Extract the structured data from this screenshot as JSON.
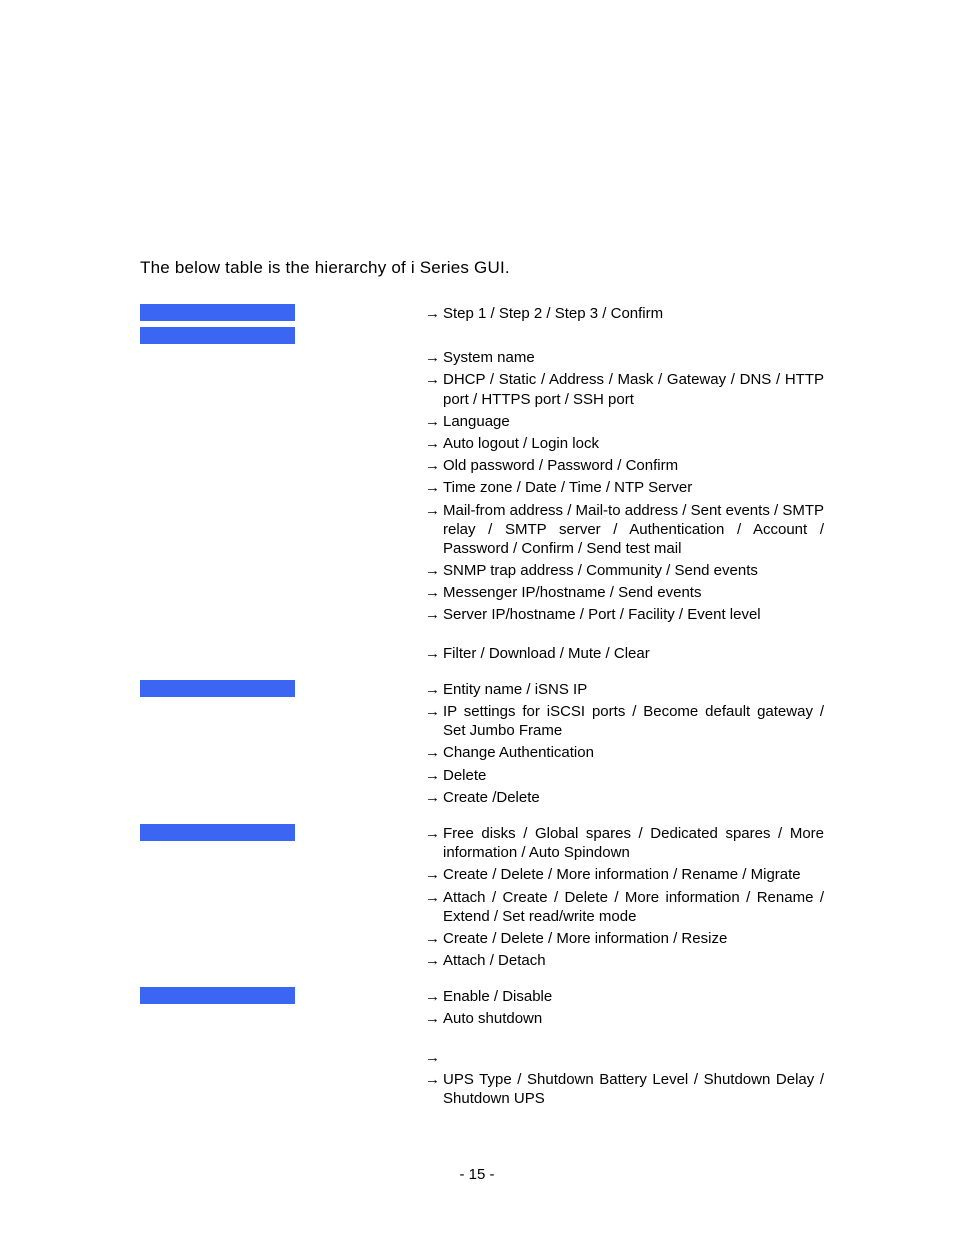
{
  "intro": "The below table is the hierarchy of  i Series GUI.",
  "colors": {
    "bar_bg": "#3a66f3",
    "text": "#000000",
    "page_bg": "#ffffff"
  },
  "sections": [
    {
      "bars": 2,
      "groups": [
        {
          "items": [
            "Step 1 / Step 2 / Step 3 / Confirm"
          ],
          "gap_after": 22
        },
        {
          "items": [
            "System name",
            "DHCP / Static / Address / Mask / Gateway / DNS / HTTP port / HTTPS port / SSH port",
            "Language",
            "Auto logout / Login lock",
            "Old password / Password / Confirm",
            "Time zone / Date / Time / NTP Server",
            "Mail-from address / Mail-to address / Sent events / SMTP relay / SMTP server / Authentication / Account / Password / Confirm / Send test mail",
            "SNMP trap address / Community / Send events",
            "Messenger IP/hostname / Send events",
            "Server IP/hostname / Port / Facility / Event level"
          ],
          "gap_after": 16
        },
        {
          "items": [
            "Filter / Download / Mute / Clear"
          ],
          "gap_after": 0
        }
      ]
    },
    {
      "bars": 1,
      "groups": [
        {
          "items": [
            "Entity name / iSNS IP",
            "IP settings for iSCSI ports / Become default gateway / Set Jumbo Frame",
            "Change Authentication",
            "Delete",
            "Create /Delete"
          ],
          "gap_after": 0
        }
      ]
    },
    {
      "bars": 1,
      "groups": [
        {
          "items": [
            "Free disks / Global spares / Dedicated spares / More information / Auto Spindown",
            "Create / Delete / More information / Rename / Migrate",
            "Attach / Create / Delete / More information / Rename / Extend / Set read/write mode",
            "Create / Delete / More information / Resize",
            "Attach / Detach"
          ],
          "gap_after": 0
        }
      ]
    },
    {
      "bars": 1,
      "groups": [
        {
          "items": [
            "Enable / Disable",
            "Auto shutdown"
          ],
          "gap_after": 16
        },
        {
          "items": [
            "",
            "UPS Type / Shutdown Battery Level / Shutdown Delay / Shutdown UPS"
          ],
          "gap_after": 0
        }
      ]
    }
  ],
  "page_number": "- 15 -"
}
